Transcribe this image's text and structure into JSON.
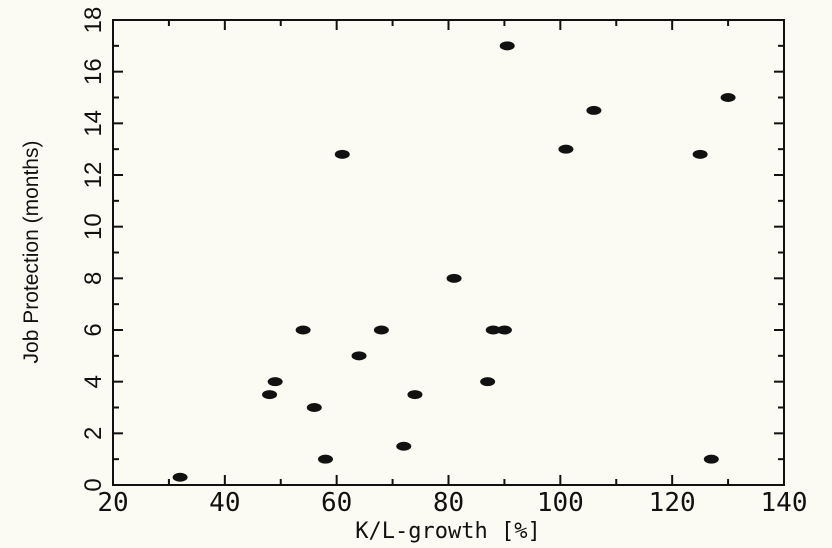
{
  "chart_data": {
    "type": "scatter",
    "title": "",
    "xlabel": "K/L-growth [%]",
    "ylabel": "Job Protection (months)",
    "xlim": [
      20,
      140
    ],
    "ylim": [
      0,
      18
    ],
    "x_ticks": [
      20,
      40,
      60,
      80,
      100,
      120,
      140
    ],
    "y_ticks": [
      0,
      2,
      4,
      6,
      8,
      10,
      12,
      14,
      16,
      18
    ],
    "grid": false,
    "legend": "none",
    "marker_color": "#111111",
    "points": [
      {
        "x": 32,
        "y": 0.3
      },
      {
        "x": 48,
        "y": 3.5
      },
      {
        "x": 49,
        "y": 4
      },
      {
        "x": 54,
        "y": 6
      },
      {
        "x": 56,
        "y": 3
      },
      {
        "x": 58,
        "y": 1
      },
      {
        "x": 61,
        "y": 12.8
      },
      {
        "x": 64,
        "y": 5
      },
      {
        "x": 68,
        "y": 6
      },
      {
        "x": 72,
        "y": 1.5
      },
      {
        "x": 74,
        "y": 3.5
      },
      {
        "x": 81,
        "y": 8
      },
      {
        "x": 87,
        "y": 4
      },
      {
        "x": 88,
        "y": 6
      },
      {
        "x": 90,
        "y": 6
      },
      {
        "x": 90.5,
        "y": 17
      },
      {
        "x": 101,
        "y": 13
      },
      {
        "x": 106,
        "y": 14.5
      },
      {
        "x": 125,
        "y": 12.8
      },
      {
        "x": 127,
        "y": 1
      },
      {
        "x": 130,
        "y": 15
      }
    ]
  }
}
